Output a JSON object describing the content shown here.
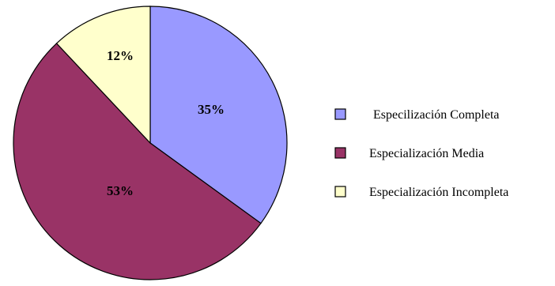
{
  "chart_data": {
    "type": "pie",
    "categories": [
      "Especilización Completa",
      "Especialización Media",
      "Especialización Incompleta"
    ],
    "values": [
      35,
      53,
      12
    ],
    "data_labels": [
      "35%",
      "53%",
      "12%"
    ],
    "colors": [
      "#9999ff",
      "#993366",
      "#ffffcc"
    ],
    "title": "",
    "legend_position": "right"
  }
}
